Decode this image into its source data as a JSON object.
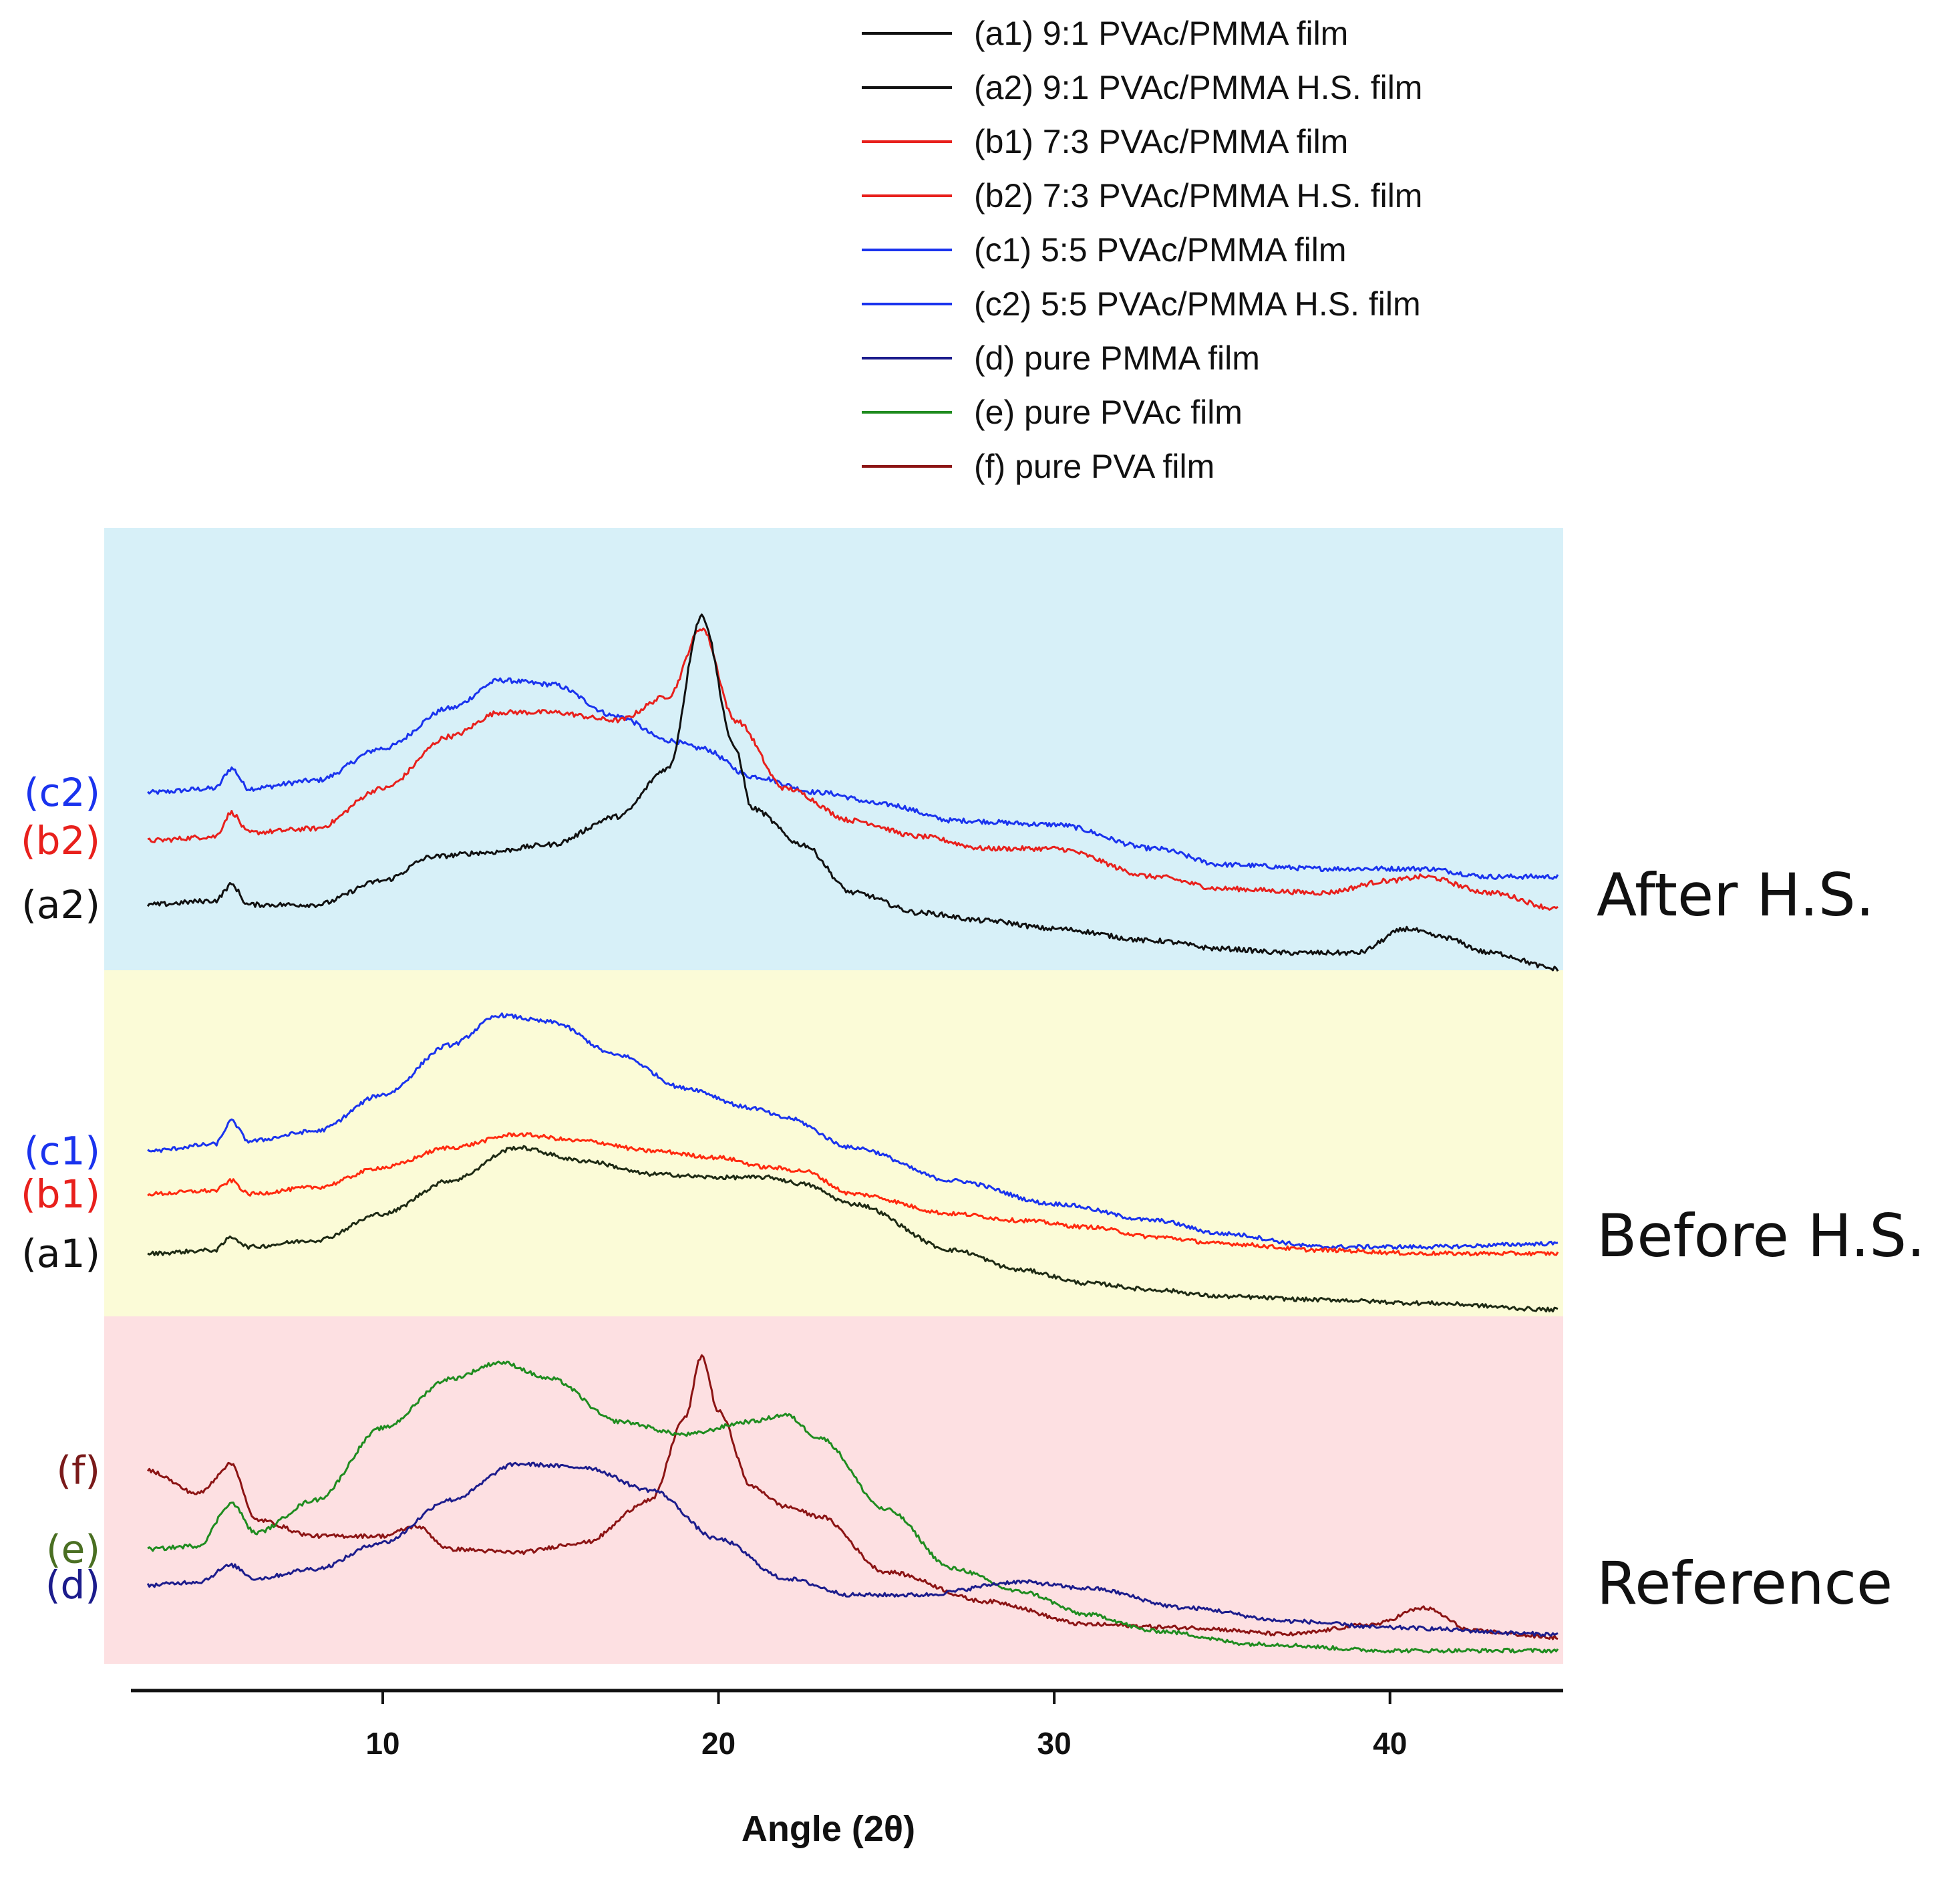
{
  "chart_data": {
    "type": "line",
    "title": "",
    "xlabel": "Angle (2θ)",
    "ylabel": "",
    "xlim": [
      2.5,
      45
    ],
    "x_ticks": [
      10,
      20,
      30,
      40
    ],
    "y_units": "relative intensity (each trace offset within its panel; panel height = 1)",
    "grid": false,
    "legend_placement": "top",
    "legend": [
      {
        "label": "(a1) 9:1 PVAc/PMMA film",
        "color": "#111111"
      },
      {
        "label": "(a2) 9:1 PVAc/PMMA H.S. film",
        "color": "#111111"
      },
      {
        "label": "(b1) 7:3 PVAc/PMMA film",
        "color": "#e8201c"
      },
      {
        "label": "(b2) 7:3 PVAc/PMMA H.S. film",
        "color": "#e8201c"
      },
      {
        "label": "(c1) 5:5 PVAc/PMMA film",
        "color": "#1a33ee"
      },
      {
        "label": "(c2) 5:5 PVAc/PMMA H.S. film",
        "color": "#1a33ee"
      },
      {
        "label": "(d) pure PMMA film",
        "color": "#1c1c8c"
      },
      {
        "label": "(e) pure PVAc film",
        "color": "#1f8c1f"
      },
      {
        "label": "(f) pure PVA film",
        "color": "#8c1414"
      }
    ],
    "panels": [
      {
        "name": "After H.S.",
        "background": "#d7f0f8",
        "series": [
          {
            "name": "c2",
            "label": "(c2)",
            "color": "#1a33ee",
            "label_color": "#1a33ee",
            "x": [
              3,
              5,
              5.5,
              6,
              8,
              10,
              12,
              13.5,
              15,
              17,
              18.5,
              19.5,
              21,
              23,
              25,
              27,
              30,
              33,
              35,
              38,
              40,
              41,
              43,
              45
            ],
            "y": [
              0.44,
              0.45,
              0.5,
              0.45,
              0.47,
              0.55,
              0.65,
              0.72,
              0.71,
              0.63,
              0.57,
              0.55,
              0.48,
              0.44,
              0.41,
              0.37,
              0.36,
              0.3,
              0.26,
              0.25,
              0.25,
              0.25,
              0.23,
              0.23
            ]
          },
          {
            "name": "b2",
            "label": "(b2)",
            "color": "#e8201c",
            "label_color": "#e8201c",
            "x": [
              3,
              5,
              5.5,
              6,
              8,
              10,
              12,
              13.5,
              15,
              17,
              18.5,
              19.5,
              20.5,
              22,
              24,
              26,
              28,
              30,
              33,
              35,
              38,
              40,
              41,
              43,
              45
            ],
            "y": [
              0.32,
              0.33,
              0.39,
              0.34,
              0.35,
              0.45,
              0.58,
              0.64,
              0.64,
              0.62,
              0.68,
              0.85,
              0.62,
              0.45,
              0.37,
              0.33,
              0.3,
              0.3,
              0.23,
              0.2,
              0.19,
              0.22,
              0.23,
              0.19,
              0.15
            ]
          },
          {
            "name": "a2",
            "label": "(a2)",
            "color": "#111111",
            "label_color": "#111111",
            "x": [
              3,
              5,
              5.5,
              6,
              8,
              10,
              11.5,
              13,
              15,
              17,
              18.5,
              19.5,
              20.5,
              21,
              22.5,
              24,
              26,
              28,
              30,
              33,
              35,
              37,
              39,
              40.5,
              41.5,
              43,
              45
            ],
            "y": [
              0.16,
              0.17,
              0.21,
              0.16,
              0.16,
              0.22,
              0.28,
              0.29,
              0.31,
              0.38,
              0.5,
              0.88,
              0.55,
              0.4,
              0.31,
              0.19,
              0.14,
              0.12,
              0.1,
              0.07,
              0.05,
              0.04,
              0.04,
              0.1,
              0.08,
              0.04,
              0.0
            ]
          }
        ],
        "side_label": "After H.S."
      },
      {
        "name": "Before H.S.",
        "background": "#fbfbd7",
        "series": [
          {
            "name": "c1",
            "label": "(c1)",
            "color": "#1a33ee",
            "label_color": "#1a33ee",
            "x": [
              3,
              5,
              5.5,
              6,
              8,
              10,
              12,
              13.5,
              15,
              17,
              19,
              21,
              22,
              24,
              27,
              30,
              33,
              35,
              38,
              41,
              45
            ],
            "y": [
              0.49,
              0.51,
              0.58,
              0.52,
              0.55,
              0.66,
              0.81,
              0.9,
              0.88,
              0.78,
              0.68,
              0.62,
              0.59,
              0.5,
              0.4,
              0.33,
              0.28,
              0.24,
              0.2,
              0.2,
              0.21
            ]
          },
          {
            "name": "b1",
            "label": "(b1)",
            "color": "#ff2a0f",
            "label_color": "#e8201c",
            "x": [
              3,
              5,
              5.5,
              6,
              8,
              10,
              12,
              14,
              16,
              18,
              20,
              21.5,
              22.5,
              24,
              27,
              29,
              31,
              33,
              35,
              38,
              41,
              45
            ],
            "y": [
              0.36,
              0.37,
              0.4,
              0.36,
              0.38,
              0.44,
              0.5,
              0.54,
              0.52,
              0.49,
              0.47,
              0.44,
              0.43,
              0.36,
              0.3,
              0.28,
              0.26,
              0.23,
              0.21,
              0.19,
              0.18,
              0.18
            ]
          },
          {
            "name": "a1",
            "label": "(a1)",
            "color": "#1e2a14",
            "label_color": "#111111",
            "x": [
              3,
              5,
              5.5,
              6,
              8,
              10,
              12,
              14,
              16,
              18,
              20,
              21.5,
              22.5,
              24,
              27,
              29,
              31,
              33,
              35,
              38,
              41,
              45
            ],
            "y": [
              0.18,
              0.19,
              0.23,
              0.2,
              0.22,
              0.3,
              0.4,
              0.5,
              0.46,
              0.42,
              0.41,
              0.41,
              0.39,
              0.33,
              0.19,
              0.13,
              0.09,
              0.07,
              0.05,
              0.04,
              0.03,
              0.01
            ]
          }
        ],
        "side_label": "Before H.S."
      },
      {
        "name": "Reference",
        "background": "#fde0e2",
        "series": [
          {
            "name": "f",
            "label": "(f)",
            "color": "#8c1414",
            "label_color": "#7a1a1a",
            "x": [
              3,
              4.5,
              5.5,
              6.2,
              8,
              10,
              11,
              12,
              14,
              16,
              18,
              19,
              19.5,
              20,
              21,
              22,
              23,
              25,
              28,
              31,
              34,
              37,
              39.5,
              41,
              42.5,
              45
            ],
            "y": [
              0.57,
              0.5,
              0.59,
              0.42,
              0.37,
              0.37,
              0.4,
              0.33,
              0.32,
              0.35,
              0.48,
              0.73,
              0.92,
              0.75,
              0.52,
              0.46,
              0.43,
              0.26,
              0.17,
              0.1,
              0.09,
              0.07,
              0.1,
              0.15,
              0.08,
              0.06
            ]
          },
          {
            "name": "e",
            "label": "(e)",
            "color": "#1f8c1f",
            "label_color": "#4a6f22",
            "x": [
              3,
              4.5,
              5.5,
              6.2,
              8,
              10,
              12,
              13.5,
              15,
              17,
              19,
              21,
              22,
              23,
              25,
              27,
              29,
              31,
              33,
              36,
              40,
              45
            ],
            "y": [
              0.33,
              0.34,
              0.47,
              0.38,
              0.48,
              0.7,
              0.85,
              0.9,
              0.85,
              0.72,
              0.68,
              0.72,
              0.74,
              0.67,
              0.45,
              0.27,
              0.2,
              0.13,
              0.08,
              0.04,
              0.02,
              0.02
            ]
          },
          {
            "name": "d",
            "label": "(d)",
            "color": "#1c1c8c",
            "label_color": "#1c1c8c",
            "x": [
              3,
              4.5,
              5.5,
              6.2,
              8,
              10,
              12,
              14,
              16,
              18,
              20,
              22,
              24,
              26,
              29,
              31,
              34,
              37,
              40,
              45
            ],
            "y": [
              0.22,
              0.23,
              0.28,
              0.24,
              0.27,
              0.35,
              0.48,
              0.59,
              0.58,
              0.51,
              0.36,
              0.24,
              0.19,
              0.19,
              0.23,
              0.21,
              0.15,
              0.11,
              0.09,
              0.07
            ]
          }
        ],
        "side_label": "Reference"
      }
    ]
  }
}
